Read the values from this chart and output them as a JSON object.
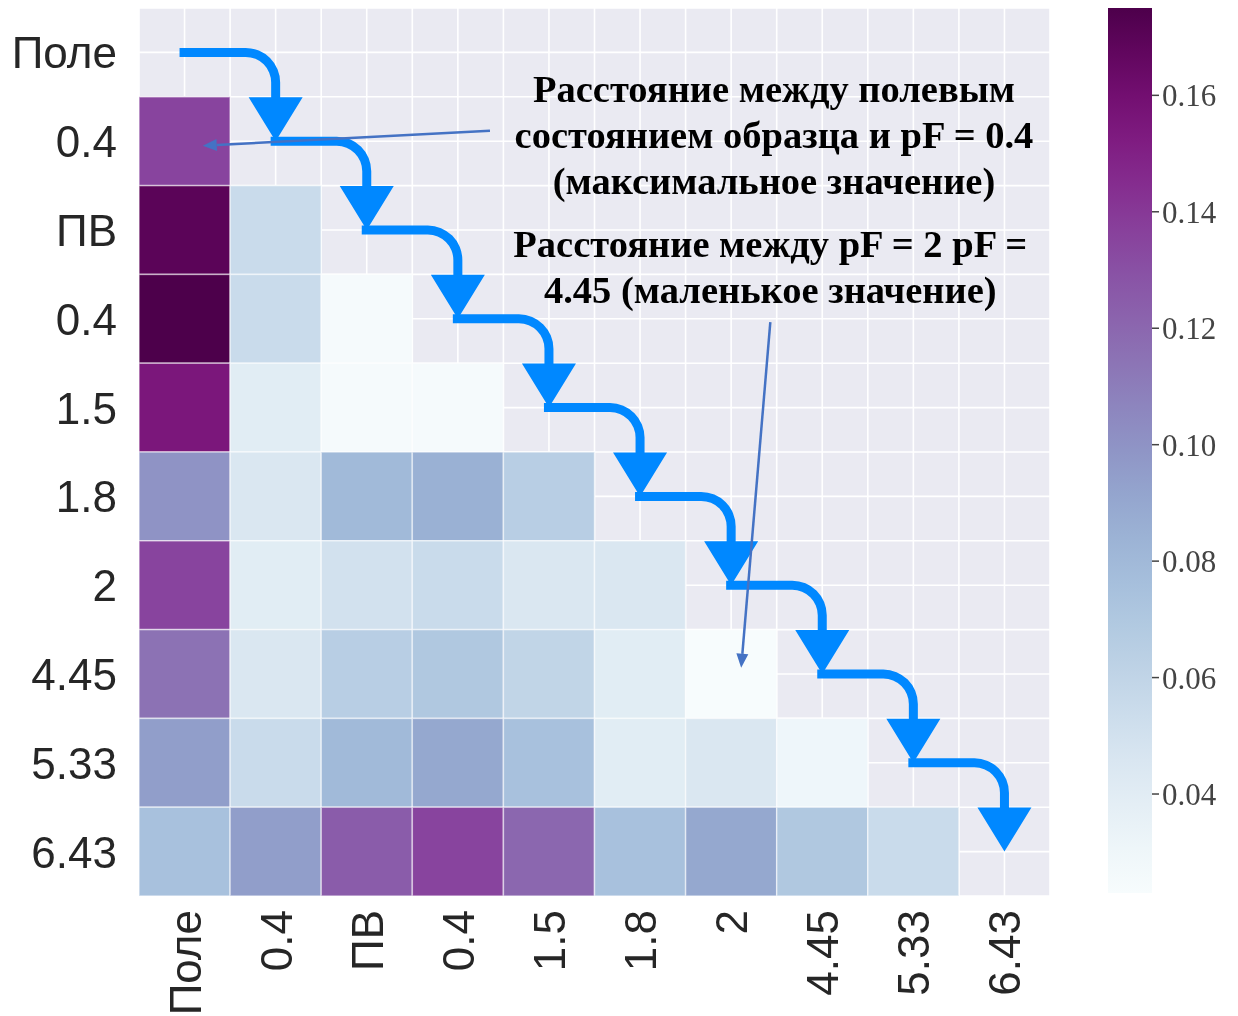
{
  "chart_data": {
    "type": "heatmap",
    "categories": [
      "Поле",
      "0.4",
      "ПВ",
      "0.4",
      "1.5",
      "1.8",
      "2",
      "4.45",
      "5.33",
      "6.43"
    ],
    "y_categories": [
      "Поле",
      "0.4",
      "ПВ",
      "0.4",
      "1.5",
      "1.8",
      "2",
      "4.45",
      "5.33",
      "6.43"
    ],
    "cells": [
      [
        null,
        null,
        null,
        null,
        null,
        null,
        null,
        null,
        null,
        null
      ],
      [
        0.135,
        null,
        null,
        null,
        null,
        null,
        null,
        null,
        null,
        null
      ],
      [
        0.17,
        0.055,
        null,
        null,
        null,
        null,
        null,
        null,
        null,
        null
      ],
      [
        0.175,
        0.055,
        0.025,
        null,
        null,
        null,
        null,
        null,
        null,
        null
      ],
      [
        0.155,
        0.04,
        0.025,
        0.025,
        null,
        null,
        null,
        null,
        null,
        null
      ],
      [
        0.1,
        0.045,
        0.08,
        0.085,
        0.065,
        null,
        null,
        null,
        null,
        null
      ],
      [
        0.135,
        0.04,
        0.05,
        0.055,
        0.045,
        0.045,
        null,
        null,
        null,
        null
      ],
      [
        0.115,
        0.045,
        0.065,
        0.07,
        0.06,
        0.04,
        0.023,
        null,
        null,
        null
      ],
      [
        0.095,
        0.055,
        0.08,
        0.09,
        0.075,
        0.04,
        0.045,
        0.03,
        null,
        null
      ],
      [
        0.075,
        0.095,
        0.125,
        0.135,
        0.12,
        0.075,
        0.09,
        0.07,
        0.055,
        null
      ]
    ],
    "clim": [
      0.023,
      0.175
    ],
    "cticks": [
      0.04,
      0.06,
      0.08,
      {
        "value": 0.1,
        "label": "0.10"
      },
      0.12,
      0.14,
      0.16
    ],
    "grid": true,
    "annotations": [
      "Расстояние между полевым\nсостоянием образца и pF = 0.4\n(максимальное значение)",
      "Расстояние между pF = 2 pF =\n4.45 (маленькое значение)"
    ]
  }
}
